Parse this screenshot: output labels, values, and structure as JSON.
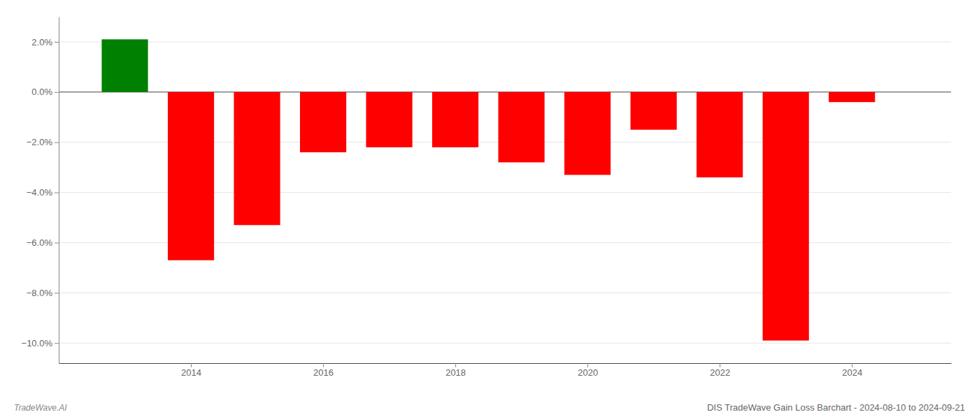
{
  "chart_data": {
    "type": "bar",
    "title": "DIS TradeWave Gain Loss Barchart - 2024-08-10 to 2024-09-21",
    "annotations": [
      "TradeWave.AI"
    ],
    "x": [
      2013,
      2014,
      2015,
      2016,
      2017,
      2018,
      2019,
      2020,
      2021,
      2022,
      2023,
      2024
    ],
    "values": [
      2.1,
      -6.7,
      -5.3,
      -2.4,
      -2.2,
      -2.2,
      -2.8,
      -3.3,
      -1.5,
      -3.4,
      -9.9,
      -0.4
    ],
    "colors": [
      "#008000",
      "#ff0000",
      "#ff0000",
      "#ff0000",
      "#ff0000",
      "#ff0000",
      "#ff0000",
      "#ff0000",
      "#ff0000",
      "#ff0000",
      "#ff0000",
      "#ff0000"
    ],
    "xlim": [
      2012.0,
      2025.5
    ],
    "xticks": [
      2014,
      2016,
      2018,
      2020,
      2022,
      2024
    ],
    "ylim": [
      -10.8,
      3.0
    ],
    "yticks": [
      {
        "value": -10.0,
        "label": "−10.0%"
      },
      {
        "value": -8.0,
        "label": "−8.0%"
      },
      {
        "value": -6.0,
        "label": "−6.0%"
      },
      {
        "value": -4.0,
        "label": "−4.0%"
      },
      {
        "value": -2.0,
        "label": "−2.0%"
      },
      {
        "value": 0.0,
        "label": "0.0%"
      },
      {
        "value": 2.0,
        "label": "2.0%"
      }
    ],
    "grid": true
  }
}
